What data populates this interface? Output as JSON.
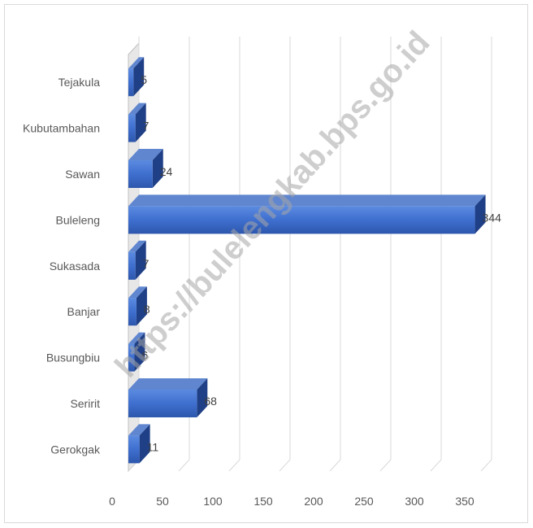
{
  "chart_data": {
    "type": "bar",
    "orientation": "horizontal",
    "style": "3d",
    "categories": [
      "Gerokgak",
      "Seririt",
      "Busungbiu",
      "Banjar",
      "Sukasada",
      "Buleleng",
      "Sawan",
      "Kubutambahan",
      "Tejakula"
    ],
    "values": [
      11,
      68,
      6,
      8,
      7,
      344,
      24,
      7,
      5
    ],
    "x_ticks": [
      "0",
      "50",
      "100",
      "150",
      "200",
      "250",
      "300",
      "350"
    ],
    "xlim": [
      0,
      350
    ],
    "grid": true,
    "legend": "none",
    "bar_color": "#4472c4"
  },
  "watermark": "https://bulelengkab.bps.go.id"
}
